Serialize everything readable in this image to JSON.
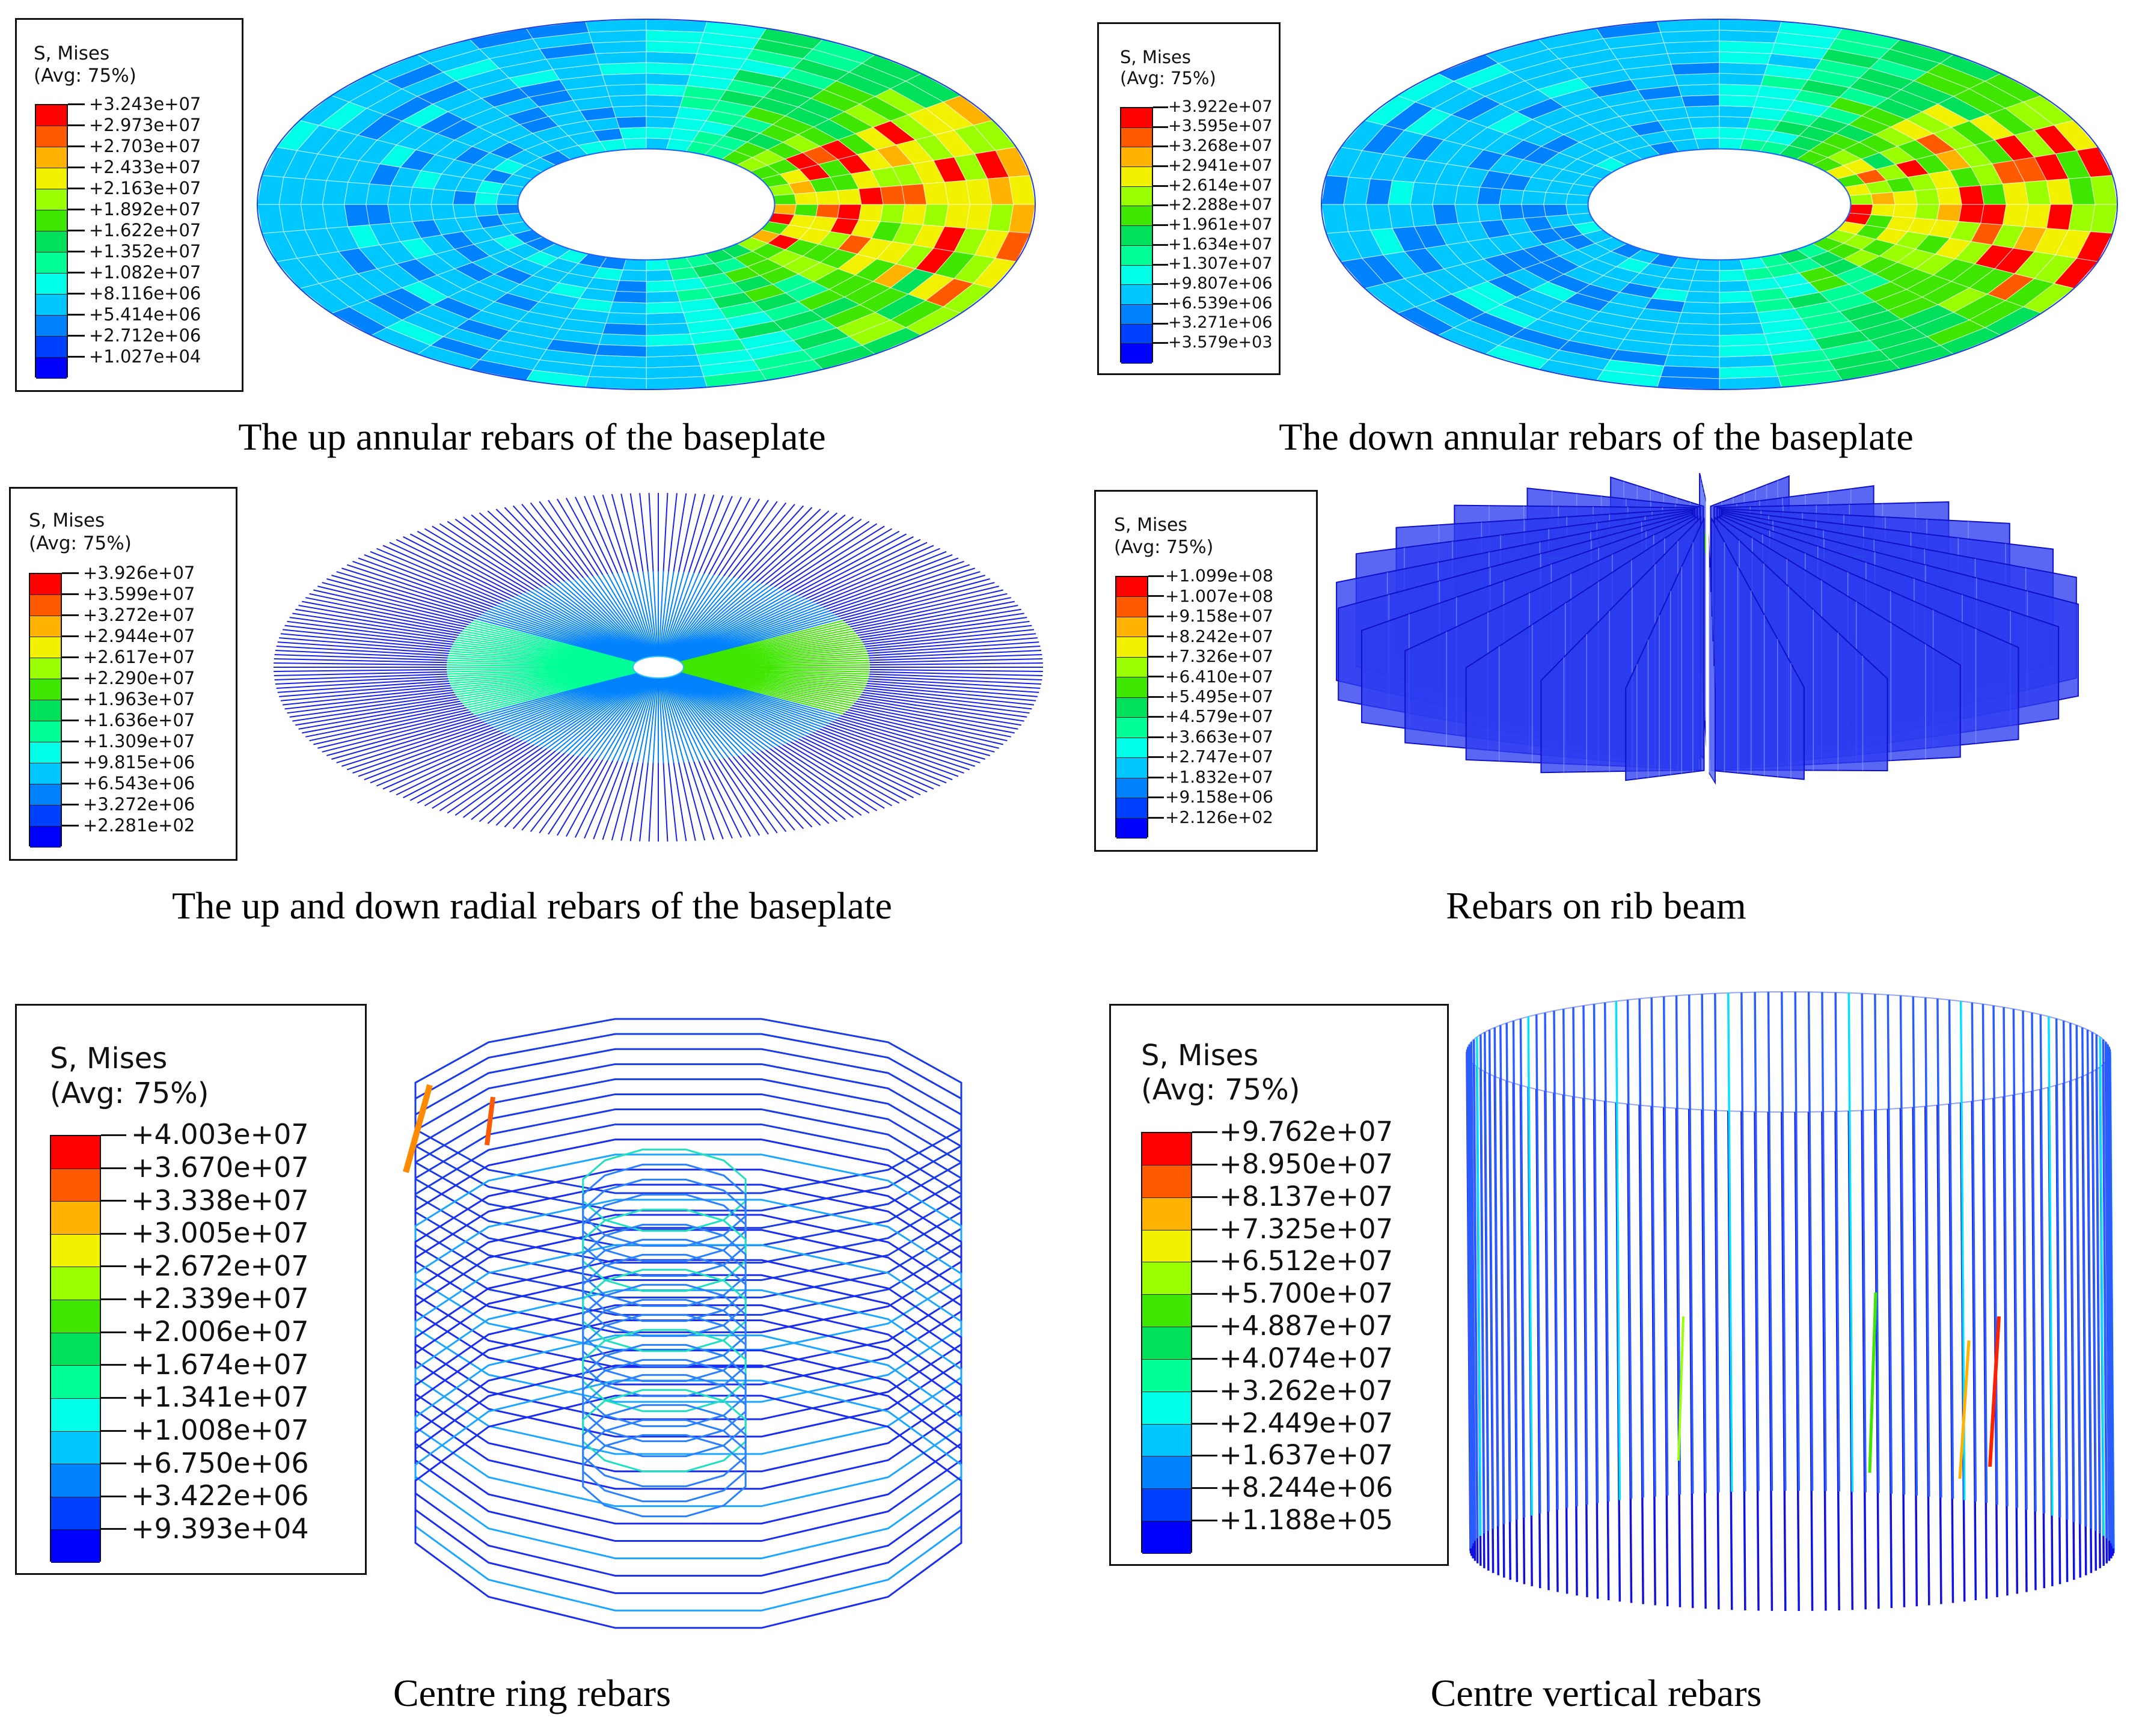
{
  "colormap": [
    "#ff0000",
    "#ff5a00",
    "#ffb200",
    "#f2f200",
    "#9aff00",
    "#3ee600",
    "#00e05a",
    "#00ff96",
    "#00ffe6",
    "#00c8ff",
    "#0082ff",
    "#0040ff",
    "#0000ff"
  ],
  "panels": [
    {
      "id": "up-annular",
      "caption": "The up annular rebars of the baseplate",
      "legend_title": "S, Mises",
      "legend_subtitle": "(Avg: 75%)",
      "legend_values": [
        "+3.243e+07",
        "+2.973e+07",
        "+2.703e+07",
        "+2.433e+07",
        "+2.163e+07",
        "+1.892e+07",
        "+1.622e+07",
        "+1.352e+07",
        "+1.082e+07",
        "+8.116e+06",
        "+5.414e+06",
        "+2.712e+06",
        "+1.027e+04"
      ]
    },
    {
      "id": "down-annular",
      "caption": "The down annular rebars of the baseplate",
      "legend_title": "S, Mises",
      "legend_subtitle": "(Avg: 75%)",
      "legend_values": [
        "+3.922e+07",
        "+3.595e+07",
        "+3.268e+07",
        "+2.941e+07",
        "+2.614e+07",
        "+2.288e+07",
        "+1.961e+07",
        "+1.634e+07",
        "+1.307e+07",
        "+9.807e+06",
        "+6.539e+06",
        "+3.271e+06",
        "+3.579e+03"
      ]
    },
    {
      "id": "radial",
      "caption": "The up and down radial rebars of the baseplate",
      "legend_title": "S, Mises",
      "legend_subtitle": "(Avg: 75%)",
      "legend_values": [
        "+3.926e+07",
        "+3.599e+07",
        "+3.272e+07",
        "+2.944e+07",
        "+2.617e+07",
        "+2.290e+07",
        "+1.963e+07",
        "+1.636e+07",
        "+1.309e+07",
        "+9.815e+06",
        "+6.543e+06",
        "+3.272e+06",
        "+2.281e+02"
      ]
    },
    {
      "id": "rib-beam",
      "caption": "Rebars on rib beam",
      "legend_title": "S, Mises",
      "legend_subtitle": "(Avg: 75%)",
      "legend_values": [
        "+1.099e+08",
        "+1.007e+08",
        "+9.158e+07",
        "+8.242e+07",
        "+7.326e+07",
        "+6.410e+07",
        "+5.495e+07",
        "+4.579e+07",
        "+3.663e+07",
        "+2.747e+07",
        "+1.832e+07",
        "+9.158e+06",
        "+2.126e+02"
      ]
    },
    {
      "id": "centre-ring",
      "caption": "Centre ring rebars",
      "legend_title": "S, Mises",
      "legend_subtitle": "(Avg: 75%)",
      "legend_values": [
        "+4.003e+07",
        "+3.670e+07",
        "+3.338e+07",
        "+3.005e+07",
        "+2.672e+07",
        "+2.339e+07",
        "+2.006e+07",
        "+1.674e+07",
        "+1.341e+07",
        "+1.008e+07",
        "+6.750e+06",
        "+3.422e+06",
        "+9.393e+04"
      ]
    },
    {
      "id": "centre-vertical",
      "caption": "Centre vertical rebars",
      "legend_title": "S, Mises",
      "legend_subtitle": "(Avg: 75%)",
      "legend_values": [
        "+9.762e+07",
        "+8.950e+07",
        "+8.137e+07",
        "+7.325e+07",
        "+6.512e+07",
        "+5.700e+07",
        "+4.887e+07",
        "+4.074e+07",
        "+3.262e+07",
        "+2.449e+07",
        "+1.637e+07",
        "+8.244e+06",
        "+1.188e+05"
      ]
    }
  ]
}
